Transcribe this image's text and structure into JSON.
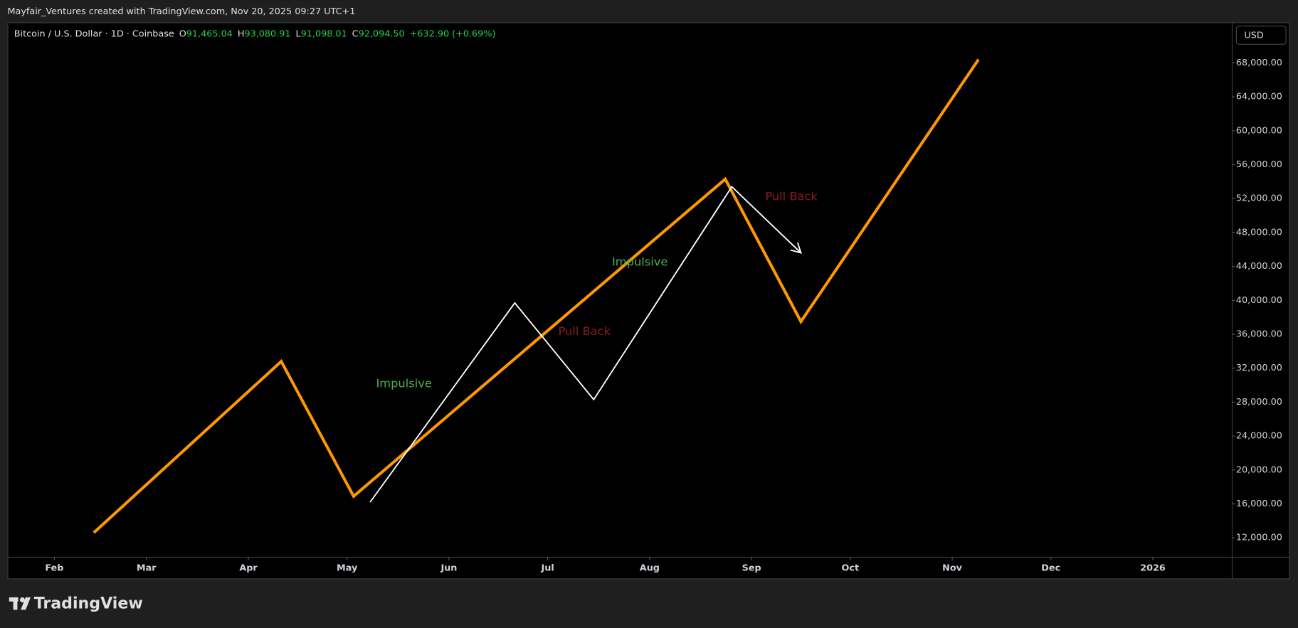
{
  "header": {
    "title": "Mayfair_Ventures created with TradingView.com, Nov 20, 2025 09:27 UTC+1"
  },
  "legend": {
    "symbol": "Bitcoin / U.S. Dollar · 1D · Coinbase",
    "ohlc": [
      {
        "label": "O",
        "value": "91,465.04"
      },
      {
        "label": "H",
        "value": "93,080.91"
      },
      {
        "label": "L",
        "value": "91,098.01"
      },
      {
        "label": "C",
        "value": "92,094.50"
      }
    ],
    "change": "+632.90 (+0.69%)"
  },
  "currency_button": "USD",
  "footer": {
    "brand": "TradingView"
  },
  "chart_data": {
    "type": "line",
    "xlim": [
      17,
      389
    ],
    "ylim": [
      9760,
      72680
    ],
    "xticks": [
      {
        "value": 31,
        "label": "Feb"
      },
      {
        "value": 59,
        "label": "Mar"
      },
      {
        "value": 90,
        "label": "Apr"
      },
      {
        "value": 120,
        "label": "May"
      },
      {
        "value": 151,
        "label": "Jun"
      },
      {
        "value": 181,
        "label": "Jul"
      },
      {
        "value": 212,
        "label": "Aug"
      },
      {
        "value": 243,
        "label": "Sep"
      },
      {
        "value": 273,
        "label": "Oct"
      },
      {
        "value": 304,
        "label": "Nov"
      },
      {
        "value": 334,
        "label": "Dec"
      },
      {
        "value": 365,
        "label": "2026"
      }
    ],
    "yticks": [
      {
        "value": 12000,
        "label": "12,000.00"
      },
      {
        "value": 16000,
        "label": "16,000.00"
      },
      {
        "value": 20000,
        "label": "20,000.00"
      },
      {
        "value": 24000,
        "label": "24,000.00"
      },
      {
        "value": 28000,
        "label": "28,000.00"
      },
      {
        "value": 32000,
        "label": "32,000.00"
      },
      {
        "value": 36000,
        "label": "36,000.00"
      },
      {
        "value": 40000,
        "label": "40,000.00"
      },
      {
        "value": 44000,
        "label": "44,000.00"
      },
      {
        "value": 48000,
        "label": "48,000.00"
      },
      {
        "value": 52000,
        "label": "52,000.00"
      },
      {
        "value": 56000,
        "label": "56,000.00"
      },
      {
        "value": 60000,
        "label": "60,000.00"
      },
      {
        "value": 64000,
        "label": "64,000.00"
      },
      {
        "value": 68000,
        "label": "68,000.00"
      }
    ],
    "series": [
      {
        "color": "#ff9800",
        "x": [
          43,
          100,
          122,
          235,
          258,
          312
        ],
        "values": [
          12600,
          32800,
          16900,
          54300,
          37500,
          68400
        ]
      },
      {
        "color": "#ffffff",
        "x": [
          127,
          171,
          195,
          237,
          258
        ],
        "values": [
          16200,
          39700,
          28300,
          53400,
          45600
        ],
        "arrow": true
      }
    ],
    "annotations": [
      {
        "text": "Impulsive",
        "color": "#4caf50"
      },
      {
        "text": "Pull Back",
        "color": "#8b1c1c"
      },
      {
        "text": "Impulsive",
        "color": "#4caf50"
      },
      {
        "text": "Pull Back",
        "color": "#8b1c1c"
      }
    ]
  }
}
